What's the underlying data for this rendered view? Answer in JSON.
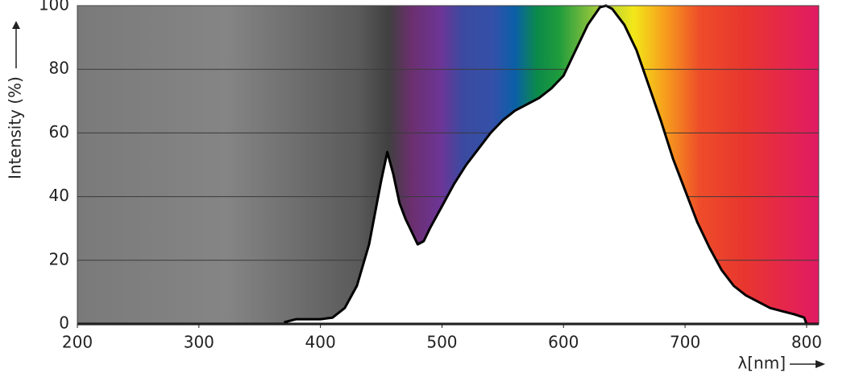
{
  "chart_data": {
    "type": "area",
    "x_label": "λ[nm]",
    "y_label": "Intensity (%)",
    "x": [
      370,
      380,
      390,
      400,
      410,
      420,
      430,
      440,
      450,
      455,
      460,
      465,
      470,
      475,
      480,
      485,
      490,
      500,
      510,
      520,
      530,
      540,
      550,
      560,
      570,
      580,
      590,
      600,
      610,
      620,
      630,
      635,
      640,
      650,
      660,
      670,
      680,
      690,
      700,
      710,
      720,
      730,
      740,
      750,
      760,
      770,
      780,
      790,
      798,
      800
    ],
    "values": [
      0.5,
      1.5,
      1.5,
      1.5,
      2,
      5,
      12,
      25,
      45,
      54,
      47,
      38,
      33,
      29,
      25,
      26,
      30,
      37,
      44,
      50,
      55,
      60,
      64,
      67,
      69,
      71,
      74,
      78,
      86,
      94,
      99.5,
      100,
      99,
      94,
      86,
      75,
      64,
      52,
      42,
      32,
      24,
      17,
      12,
      9,
      7,
      5,
      4,
      3,
      2,
      0
    ],
    "color": "#ffffff",
    "xlim": [
      200,
      810
    ],
    "ylim": [
      0,
      100
    ],
    "xticks": [
      200,
      300,
      400,
      500,
      600,
      700,
      800
    ],
    "yticks": [
      0,
      20,
      40,
      60,
      80,
      100
    ],
    "grid": true
  }
}
